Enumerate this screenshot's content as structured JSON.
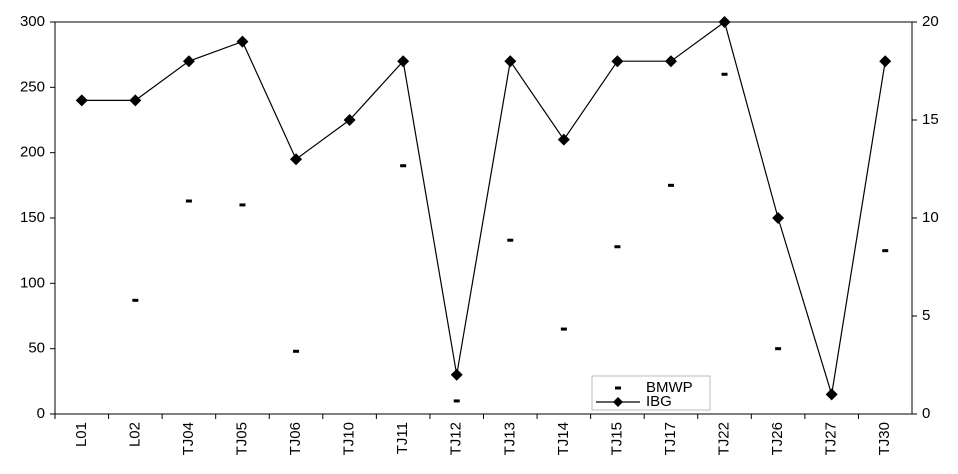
{
  "chart_data": {
    "type": "line",
    "categories": [
      "L01",
      "L02",
      "TJ04",
      "TJ05",
      "TJ06",
      "TJ10",
      "TJ11",
      "TJ12",
      "TJ13",
      "TJ14",
      "TJ15",
      "TJ17",
      "TJ22",
      "TJ26",
      "TJ27",
      "TJ30"
    ],
    "series": [
      {
        "name": "BMWP",
        "color": "#000000",
        "values": [
          null,
          87,
          163,
          160,
          48,
          null,
          190,
          10,
          133,
          65,
          128,
          175,
          260,
          50,
          null,
          125
        ]
      },
      {
        "name": "IBG",
        "color": "#000000",
        "axis": "y2",
        "values": [
          16,
          16,
          18,
          19,
          13,
          15,
          18,
          2,
          18,
          14,
          18,
          18,
          20,
          10,
          1,
          18
        ]
      }
    ],
    "ylim": [
      0,
      300
    ],
    "yticks": [
      0,
      50,
      100,
      150,
      200,
      250,
      300
    ],
    "y2lim": [
      0,
      20
    ],
    "y2ticks": [
      0,
      5,
      10,
      15,
      20
    ],
    "legend": "bottom-right"
  }
}
